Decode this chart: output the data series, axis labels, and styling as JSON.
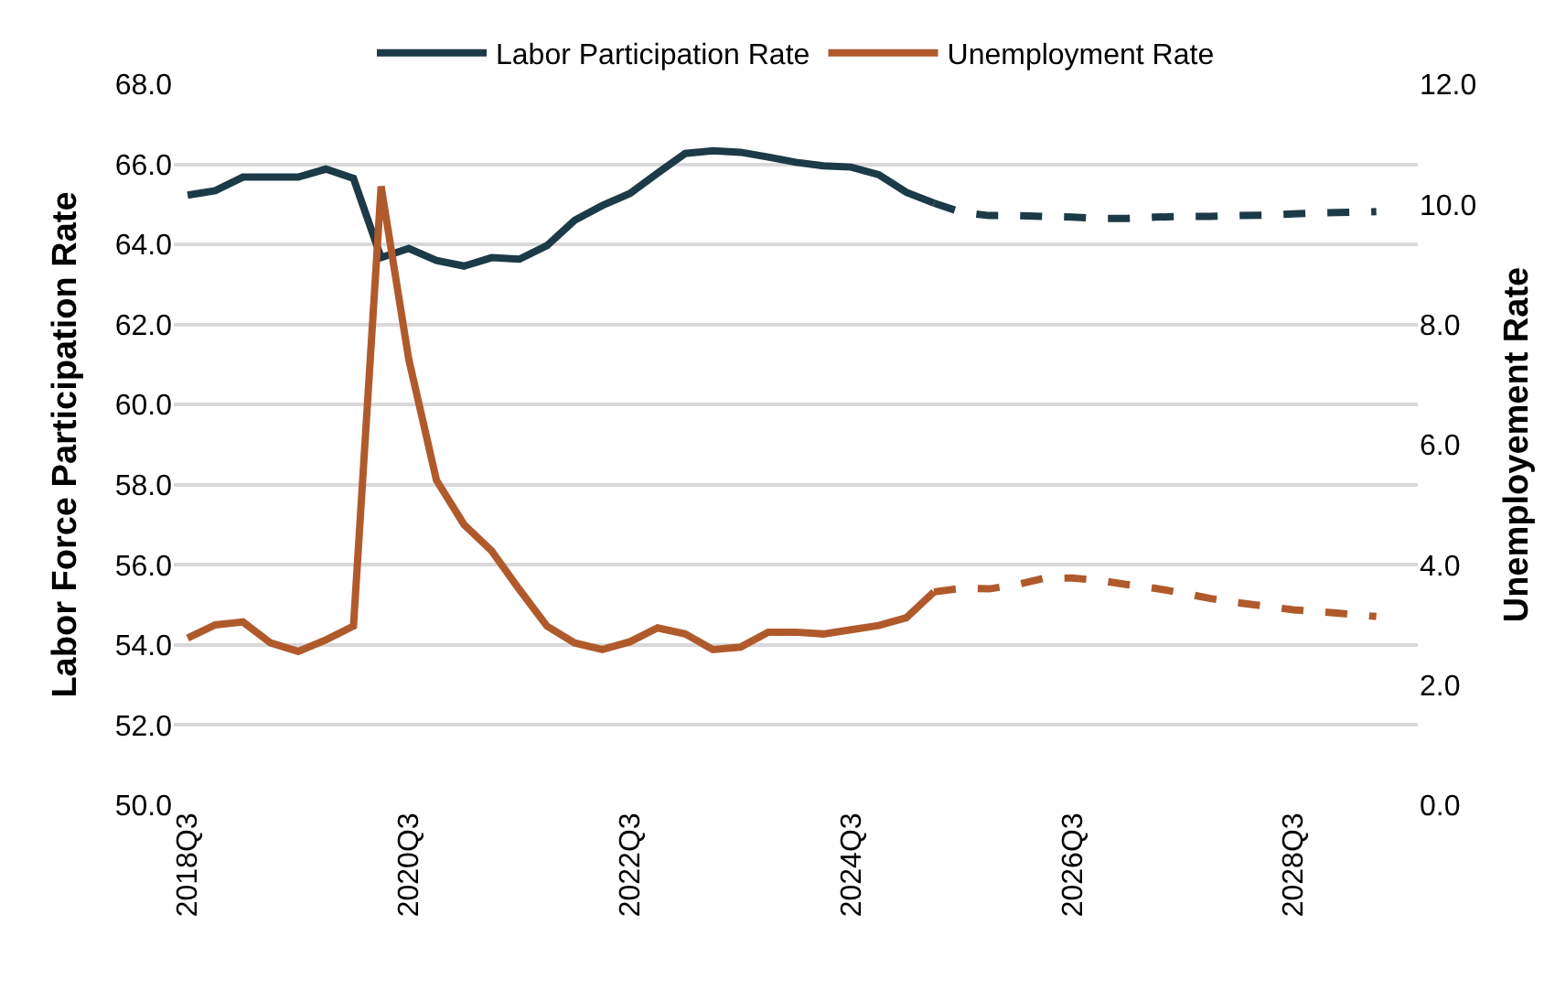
{
  "chart_data": {
    "type": "line",
    "xlabel": null,
    "ylabel": "Labor Force Participation Rate",
    "y2label": "Unemployement Rate",
    "categories": [
      "2018Q3",
      null,
      null,
      null,
      null,
      null,
      null,
      null,
      "2020Q3",
      null,
      null,
      null,
      null,
      null,
      null,
      null,
      "2022Q3",
      null,
      null,
      null,
      null,
      null,
      null,
      null,
      "2024Q3",
      null,
      null,
      null,
      null,
      null,
      null,
      null,
      "2026Q3",
      null,
      null,
      null,
      null,
      null,
      null,
      null,
      "2028Q3",
      null,
      null,
      null,
      null
    ],
    "series": [
      {
        "name": "Labor Participation Rate",
        "color": "#1c3a47",
        "line_style": "solid",
        "values": [
          65.23,
          65.34,
          65.68,
          65.68,
          65.68,
          65.88,
          65.65,
          63.67,
          63.9,
          63.6,
          63.46,
          63.67,
          63.63,
          63.97,
          64.6,
          64.97,
          65.27,
          65.78,
          66.27,
          66.34,
          66.3,
          66.18,
          66.05,
          65.96,
          65.93,
          65.74,
          65.3,
          65.03,
          null,
          null,
          null,
          null,
          null,
          null,
          null,
          null,
          null,
          null,
          null,
          null,
          null,
          null,
          null,
          null,
          null
        ]
      },
      {
        "name": "Unemployment Rate",
        "color": "#b05a2c",
        "axis": "y2",
        "line_style": "solid",
        "values": [
          2.78,
          3.0,
          3.05,
          2.7,
          2.56,
          2.75,
          2.98,
          10.3,
          7.42,
          5.41,
          4.67,
          4.23,
          3.59,
          2.98,
          2.7,
          2.59,
          2.72,
          2.95,
          2.85,
          2.59,
          2.63,
          2.88,
          2.88,
          2.85,
          2.92,
          2.99,
          3.12,
          3.55,
          null,
          null,
          null,
          null,
          null,
          null,
          null,
          null,
          null,
          null,
          null,
          null,
          null,
          null,
          null,
          null,
          null
        ]
      },
      {
        "color": "#1c3a47",
        "line_style": "dashed",
        "values": [
          null,
          null,
          null,
          null,
          null,
          null,
          null,
          null,
          null,
          null,
          null,
          null,
          null,
          null,
          null,
          null,
          null,
          null,
          null,
          null,
          null,
          null,
          null,
          null,
          null,
          null,
          null,
          65.03,
          64.8,
          64.72,
          64.72,
          64.7,
          64.68,
          64.65,
          64.65,
          64.68,
          64.7,
          64.7,
          64.72,
          64.73,
          64.76,
          64.79,
          64.8,
          64.82,
          null
        ]
      },
      {
        "color": "#b05a2c",
        "axis": "y2",
        "line_style": "dashed",
        "values": [
          null,
          null,
          null,
          null,
          null,
          null,
          null,
          null,
          null,
          null,
          null,
          null,
          null,
          null,
          null,
          null,
          null,
          null,
          null,
          null,
          null,
          null,
          null,
          null,
          null,
          null,
          null,
          3.55,
          3.61,
          3.6,
          3.67,
          3.78,
          3.78,
          3.74,
          3.67,
          3.61,
          3.53,
          3.44,
          3.37,
          3.31,
          3.25,
          3.22,
          3.18,
          3.14,
          null
        ]
      }
    ],
    "ylim": [
      50,
      68
    ],
    "yticks": [
      {
        "value": 50,
        "label": "50.0"
      },
      {
        "value": 52,
        "label": "52.0"
      },
      {
        "value": 54,
        "label": "54.0"
      },
      {
        "value": 56,
        "label": "56.0"
      },
      {
        "value": 58,
        "label": "58.0"
      },
      {
        "value": 60,
        "label": "60.0"
      },
      {
        "value": 62,
        "label": "62.0"
      },
      {
        "value": 64,
        "label": "64.0"
      },
      {
        "value": 66,
        "label": "66.0"
      },
      {
        "value": 68,
        "label": "68.0"
      }
    ],
    "y2lim": [
      0,
      12
    ],
    "y2ticks": [
      {
        "value": 0,
        "label": "0.0"
      },
      {
        "value": 2,
        "label": "2.0"
      },
      {
        "value": 4,
        "label": "4.0"
      },
      {
        "value": 6,
        "label": "6.0"
      },
      {
        "value": 8,
        "label": "8.0"
      },
      {
        "value": 10,
        "label": "10.0"
      },
      {
        "value": 12,
        "label": "12.0"
      }
    ],
    "grid": "y",
    "legend": "top",
    "marker": "none"
  }
}
